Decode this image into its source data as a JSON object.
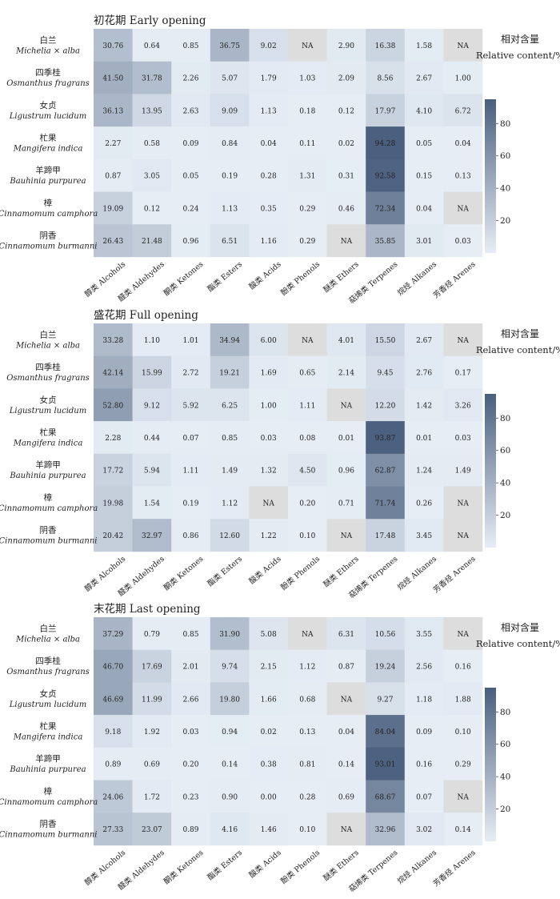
{
  "chart_data": {
    "type": "heatmap",
    "rows": [
      {
        "cn": "白兰",
        "latin": "Michelia × alba"
      },
      {
        "cn": "四季桂",
        "latin": "Osmanthus fragrans"
      },
      {
        "cn": "女贞",
        "latin": "Ligustrum lucidum"
      },
      {
        "cn": "杧果",
        "latin": "Mangifera indica"
      },
      {
        "cn": "羊蹄甲",
        "latin": "Bauhinia purpurea"
      },
      {
        "cn": "樟",
        "latin": "Cinnamomum camphora"
      },
      {
        "cn": "阴香",
        "latin": "Cinnamomum burmanni"
      }
    ],
    "columns": [
      "醇类 Alcohols",
      "醛类 Aldehydes",
      "酮类 Ketones",
      "酯类 Esters",
      "酸类 Acids",
      "酚类 Phenols",
      "醚类 Ethers",
      "萜烯类 Terpenes",
      "烷烃 Alkanes",
      "芳香烃 Arenes"
    ],
    "na_label": "NA",
    "colorbar": {
      "title_cn": "相对含量",
      "title_en": "Relative content/%",
      "ticks": [
        20,
        40,
        60,
        80
      ],
      "range": [
        0,
        95
      ],
      "color_low": "#e6edf5",
      "color_high": "#4a5f7e",
      "na_color": "#dddddd"
    },
    "panels": [
      {
        "title": "初花期 Early opening",
        "values": [
          [
            "30.76",
            "0.64",
            "0.85",
            "36.75",
            "9.02",
            null,
            "2.90",
            "16.38",
            "1.58",
            null
          ],
          [
            "41.50",
            "31.78",
            "2.26",
            "5.07",
            "1.79",
            "1.03",
            "2.09",
            "8.56",
            "2.67",
            "1.00"
          ],
          [
            "36.13",
            "13.95",
            "2.63",
            "9.09",
            "1.13",
            "0.18",
            "0.12",
            "17.97",
            "4.10",
            "6.72"
          ],
          [
            "2.27",
            "0.58",
            "0.09",
            "0.84",
            "0.04",
            "0.11",
            "0.02",
            "94.28",
            "0.05",
            "0.04"
          ],
          [
            "0.87",
            "3.05",
            "0.05",
            "0.19",
            "0.28",
            "1.31",
            "0.31",
            "92.58",
            "0.15",
            "0.13"
          ],
          [
            "19.09",
            "0.12",
            "0.24",
            "1.13",
            "0.35",
            "0.29",
            "0.46",
            "72.34",
            "0.04",
            null
          ],
          [
            "26.43",
            "21.48",
            "0.96",
            "6.51",
            "1.16",
            "0.29",
            null,
            "35.85",
            "3.01",
            "0.03"
          ]
        ]
      },
      {
        "title": "盛花期 Full opening",
        "values": [
          [
            "33.28",
            "1.10",
            "1.01",
            "34.94",
            "6.00",
            null,
            "4.01",
            "15.50",
            "2.67",
            null
          ],
          [
            "42.14",
            "15.99",
            "2.72",
            "19.21",
            "1.69",
            "0.65",
            "2.14",
            "9.45",
            "2.76",
            "0.17"
          ],
          [
            "52.80",
            "9.12",
            "5.92",
            "6.25",
            "1.00",
            "1.11",
            null,
            "12.20",
            "1.42",
            "3.26"
          ],
          [
            "2.28",
            "0.44",
            "0.07",
            "0.85",
            "0.03",
            "0.08",
            "0.01",
            "93.87",
            "0.01",
            "0.03"
          ],
          [
            "17.72",
            "5.94",
            "1.11",
            "1.49",
            "1.32",
            "4.50",
            "0.96",
            "62.87",
            "1.24",
            "1.49"
          ],
          [
            "19.98",
            "1.54",
            "0.19",
            "1.12",
            null,
            "0.20",
            "0.71",
            "71.74",
            "0.26",
            null
          ],
          [
            "20.42",
            "32.97",
            "0.86",
            "12.60",
            "1.22",
            "0.10",
            null,
            "17.48",
            "3.45",
            null
          ]
        ]
      },
      {
        "title": "末花期  Last opening",
        "values": [
          [
            "37.29",
            "0.79",
            "0.85",
            "31.90",
            "5.08",
            null,
            "6.31",
            "10.56",
            "3.55",
            null
          ],
          [
            "46.70",
            "17.69",
            "2.01",
            "9.74",
            "2.15",
            "1.12",
            "0.87",
            "19.24",
            "2.56",
            "0.16"
          ],
          [
            "46.69",
            "11.99",
            "2.66",
            "19.80",
            "1.66",
            "0.68",
            null,
            "9.27",
            "1.18",
            "1.88"
          ],
          [
            "9.18",
            "1.92",
            "0.03",
            "0.94",
            "0.02",
            "0.13",
            "0.04",
            "84.04",
            "0.09",
            "0.10"
          ],
          [
            "0.89",
            "0.69",
            "0.20",
            "0.14",
            "0.38",
            "0.81",
            "0.14",
            "93.01",
            "0.16",
            "0.29"
          ],
          [
            "24.06",
            "1.72",
            "0.23",
            "0.90",
            "0.00",
            "0.28",
            "0.69",
            "68.67",
            "0.07",
            null
          ],
          [
            "27.33",
            "23.07",
            "0.89",
            "4.16",
            "1.46",
            "0.10",
            null,
            "32.96",
            "3.02",
            "0.14"
          ]
        ]
      }
    ]
  }
}
